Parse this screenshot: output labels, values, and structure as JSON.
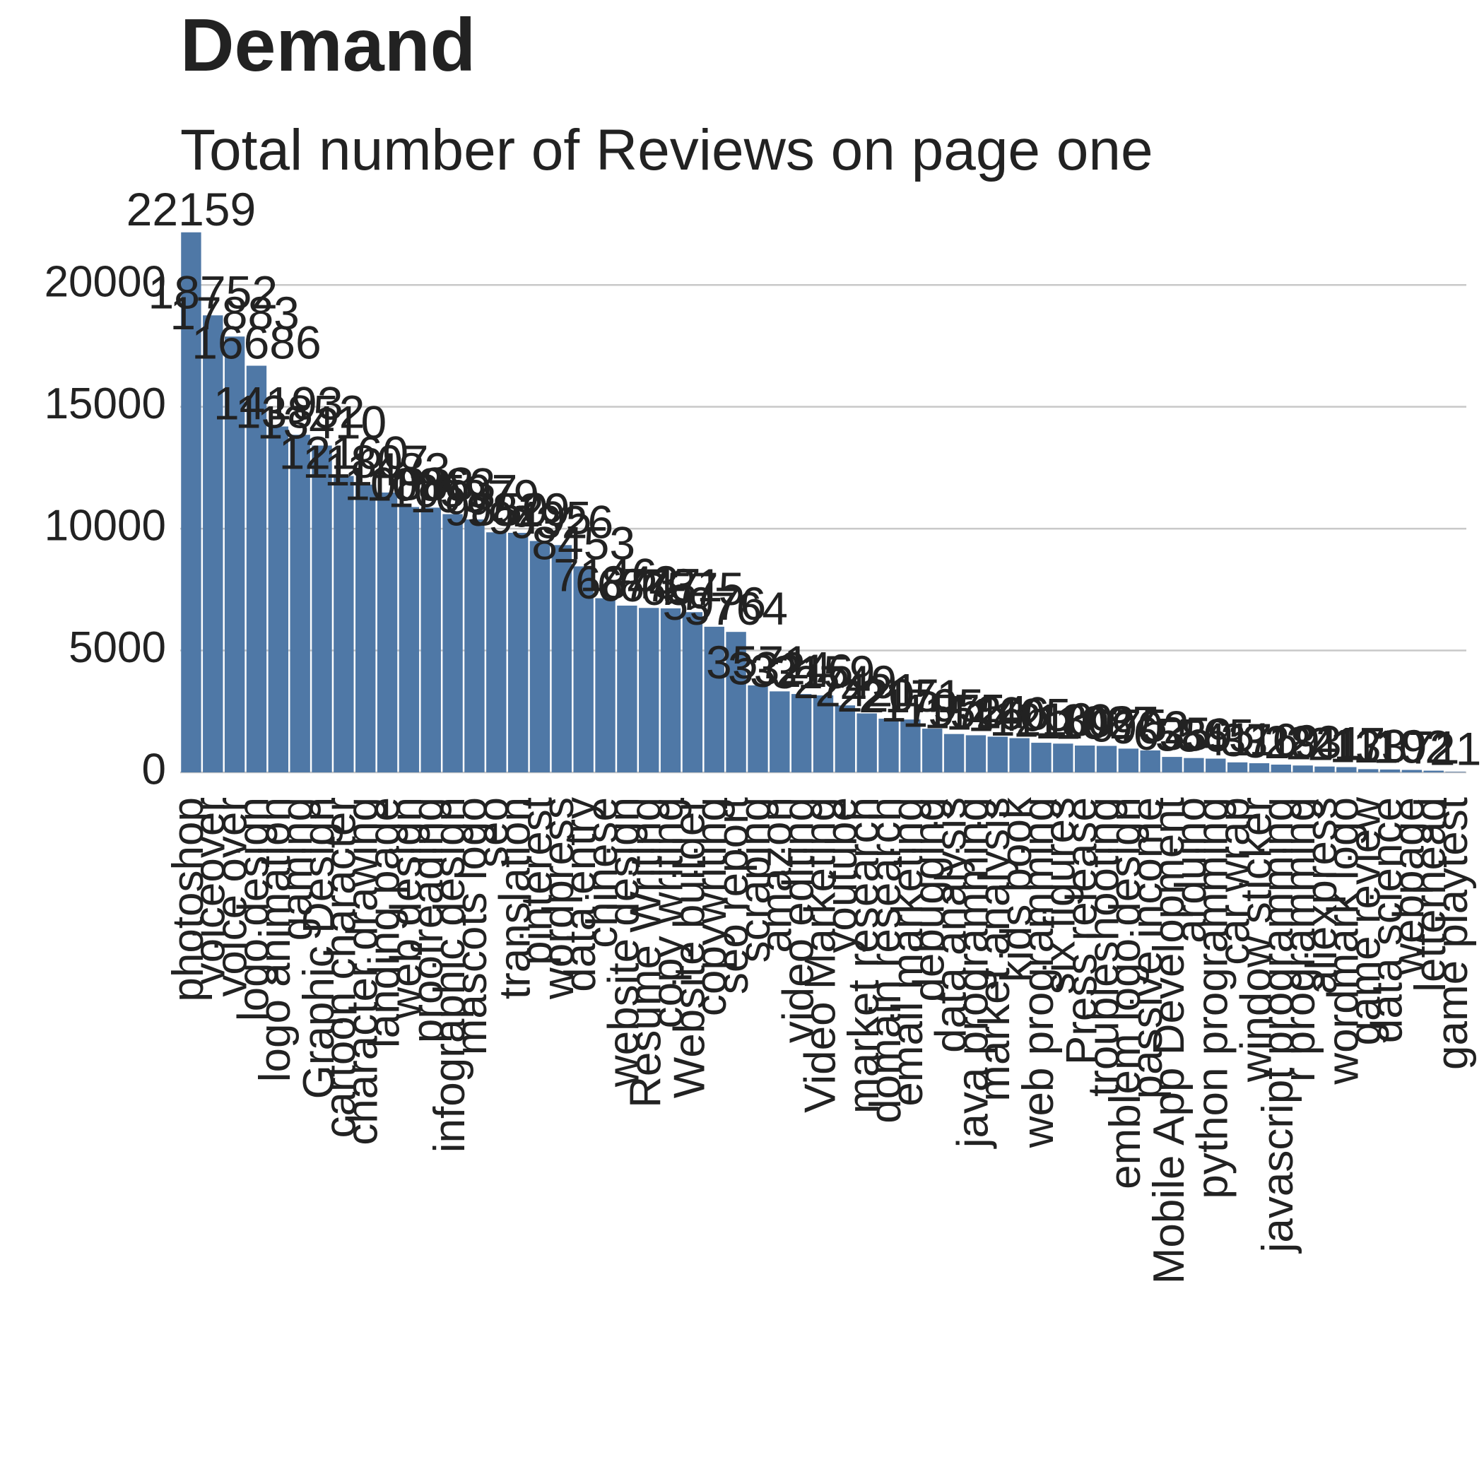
{
  "chart_data": {
    "type": "bar",
    "title": "Demand",
    "subtitle": "Total number of Reviews on page one",
    "categories": [
      "photoshop",
      "voiceover",
      "voice over",
      "logo design",
      "logo animation",
      "gaming",
      "Graphic Design",
      "cartoon character",
      "character drawing",
      "landing page",
      "web design",
      "proofreading",
      "infographic design",
      "mascots logo",
      "seo",
      "translation",
      "pinterest",
      "wordpress",
      "data entry",
      "chinese",
      "website design",
      "Resume Writing",
      "copy writing",
      "Website builder",
      "copywriting",
      "seo report",
      "scraping",
      "amazon",
      "video editing",
      "Video Marketing",
      "youtube",
      "market research",
      "domain research",
      "email marketing",
      "debugging",
      "data analysis",
      "java programming",
      "market analysis",
      "kids book",
      "web programming",
      "six figures",
      "Press release",
      "troubleshooting",
      "emblem logo design",
      "passive income",
      "Mobile App Development",
      "arduino",
      "python programming",
      "car wrap",
      "window sticker",
      "javascript programming",
      "r programming",
      "aliexpress",
      "wordmark logo",
      "game review",
      "data science",
      "webpage",
      "letterhead",
      "game playtest"
    ],
    "values": [
      22159,
      18752,
      17883,
      16686,
      14193,
      13852,
      13410,
      12160,
      11807,
      11483,
      10888,
      10863,
      10597,
      10379,
      9850,
      9829,
      9495,
      9326,
      8453,
      7146,
      6843,
      6747,
      6731,
      6575,
      5976,
      5764,
      3571,
      3324,
      3216,
      3159,
      2749,
      2421,
      2205,
      2171,
      1795,
      1575,
      1524,
      1466,
      1405,
      1216,
      1180,
      1102,
      1087,
      975,
      902,
      635,
      589,
      565,
      411,
      376,
      319,
      283,
      241,
      217,
      133,
      119,
      102,
      71,
      21
    ],
    "color": "#4f78a6",
    "ylim": [
      0,
      22500
    ],
    "yticks": [
      0,
      5000,
      10000,
      15000,
      20000
    ],
    "grid": true
  }
}
